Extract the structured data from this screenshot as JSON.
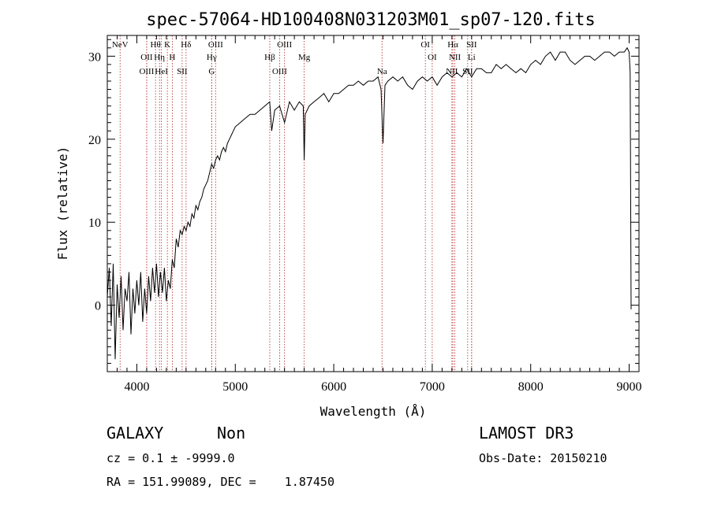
{
  "chart_data": {
    "type": "line",
    "title": "spec-57064-HD100408N031203M01_sp07-120.fits",
    "xlabel": "Wavelength (Å)",
    "ylabel": "Flux (relative)",
    "xlim": [
      3700,
      9100
    ],
    "ylim": [
      -8,
      32.5
    ],
    "x_ticks": [
      4000,
      5000,
      6000,
      7000,
      8000,
      9000
    ],
    "y_ticks": [
      0,
      10,
      20,
      30
    ],
    "series": [
      {
        "x": [
          3700,
          3720,
          3740,
          3760,
          3780,
          3800,
          3820,
          3840,
          3860,
          3880,
          3900,
          3920,
          3940,
          3960,
          3980,
          4000,
          4020,
          4040,
          4060,
          4080,
          4100,
          4120,
          4140,
          4160,
          4180,
          4200,
          4220,
          4240,
          4260,
          4280,
          4300,
          4320,
          4340,
          4360,
          4380,
          4400,
          4420,
          4440,
          4460,
          4480,
          4500,
          4520,
          4540,
          4560,
          4580,
          4600,
          4620,
          4640,
          4660,
          4680,
          4700,
          4720,
          4740,
          4760,
          4780,
          4800,
          4820,
          4840,
          4860,
          4880,
          4900,
          4920,
          4940,
          4960,
          4980,
          5000,
          5050,
          5100,
          5150,
          5200,
          5250,
          5300,
          5350,
          5370,
          5400,
          5450,
          5500,
          5550,
          5600,
          5650,
          5690,
          5700,
          5710,
          5750,
          5800,
          5850,
          5900,
          5950,
          6000,
          6050,
          6100,
          6150,
          6200,
          6250,
          6300,
          6350,
          6400,
          6450,
          6480,
          6500,
          6520,
          6550,
          6600,
          6650,
          6700,
          6750,
          6800,
          6850,
          6900,
          6950,
          7000,
          7050,
          7100,
          7150,
          7200,
          7250,
          7300,
          7350,
          7400,
          7450,
          7500,
          7550,
          7600,
          7650,
          7700,
          7750,
          7800,
          7850,
          7900,
          7950,
          8000,
          8050,
          8100,
          8150,
          8200,
          8250,
          8300,
          8350,
          8400,
          8450,
          8500,
          8550,
          8600,
          8650,
          8700,
          8750,
          8800,
          8850,
          8900,
          8950,
          8980,
          9000,
          9010,
          9020
        ],
        "y": [
          1.0,
          4.5,
          -2.5,
          5.0,
          -6.5,
          2.5,
          -1.5,
          3.5,
          -3.0,
          2.0,
          0.5,
          4.0,
          -3.5,
          2.0,
          -1.0,
          3.0,
          0.0,
          4.0,
          -2.0,
          2.0,
          -1.0,
          3.5,
          0.5,
          4.5,
          1.5,
          5.0,
          1.0,
          4.0,
          1.5,
          4.5,
          0.5,
          3.0,
          2.0,
          5.5,
          4.5,
          8.0,
          7.0,
          9.0,
          8.5,
          9.5,
          9.0,
          10.0,
          9.5,
          11.0,
          10.5,
          12.0,
          11.5,
          12.5,
          13.0,
          14.0,
          14.5,
          15.0,
          16.0,
          17.0,
          16.5,
          17.5,
          18.0,
          17.5,
          18.5,
          19.0,
          18.5,
          19.5,
          20.0,
          20.5,
          21.0,
          21.5,
          22.0,
          22.5,
          23.0,
          23.0,
          23.5,
          24.0,
          24.5,
          21.0,
          23.5,
          24.0,
          22.0,
          24.5,
          23.5,
          24.5,
          24.0,
          17.5,
          23.0,
          24.0,
          24.5,
          25.0,
          25.5,
          24.5,
          25.5,
          25.5,
          26.0,
          26.5,
          26.5,
          27.0,
          26.5,
          27.0,
          27.0,
          27.5,
          26.0,
          19.5,
          26.5,
          27.0,
          27.5,
          27.0,
          27.5,
          26.5,
          26.0,
          27.0,
          27.5,
          27.0,
          27.5,
          26.5,
          27.5,
          28.0,
          27.5,
          28.0,
          27.5,
          28.5,
          27.5,
          28.5,
          28.5,
          28.0,
          28.0,
          29.0,
          28.5,
          29.0,
          28.5,
          28.0,
          28.5,
          28.0,
          29.0,
          29.5,
          29.0,
          30.0,
          30.5,
          29.5,
          30.5,
          30.5,
          29.5,
          29.0,
          29.5,
          30.0,
          30.0,
          29.5,
          30.0,
          30.5,
          30.5,
          30.0,
          30.5,
          30.5,
          31.0,
          30.5,
          28.0,
          -0.5
        ]
      }
    ],
    "lines": [
      {
        "name": "NeV",
        "x": 3830
      },
      {
        "name": "OII",
        "x": 4100
      },
      {
        "name": "OIII",
        "x": 4100
      },
      {
        "name": "Hθ",
        "x": 4190
      },
      {
        "name": "Hη",
        "x": 4230
      },
      {
        "name": "HeI",
        "x": 4250
      },
      {
        "name": "K",
        "x": 4310
      },
      {
        "name": "H",
        "x": 4360
      },
      {
        "name": "SII",
        "x": 4460
      },
      {
        "name": "Hδ",
        "x": 4500
      },
      {
        "name": "Hγ",
        "x": 4760
      },
      {
        "name": "G",
        "x": 4760
      },
      {
        "name": "OIII",
        "x": 4800
      },
      {
        "name": "Hβ",
        "x": 5350
      },
      {
        "name": "OIII",
        "x": 5450
      },
      {
        "name": "OIII",
        "x": 5500
      },
      {
        "name": "Mg",
        "x": 5700
      },
      {
        "name": "Na",
        "x": 6490
      },
      {
        "name": "OI",
        "x": 6930
      },
      {
        "name": "OI",
        "x": 7000
      },
      {
        "name": "NII",
        "x": 7200
      },
      {
        "name": "Hα",
        "x": 7210
      },
      {
        "name": "NII",
        "x": 7230
      },
      {
        "name": "SII",
        "x": 7360
      },
      {
        "name": "SII",
        "x": 7400
      },
      {
        "name": "Li",
        "x": 7400
      }
    ]
  },
  "info": {
    "class": "GALAXY",
    "subclass": "Non",
    "survey": "LAMOST DR3",
    "cz": "cz = 0.1 ± -9999.0",
    "obs_date": "Obs-Date: 20150210",
    "radec": "RA = 151.99089, DEC =    1.87450"
  }
}
